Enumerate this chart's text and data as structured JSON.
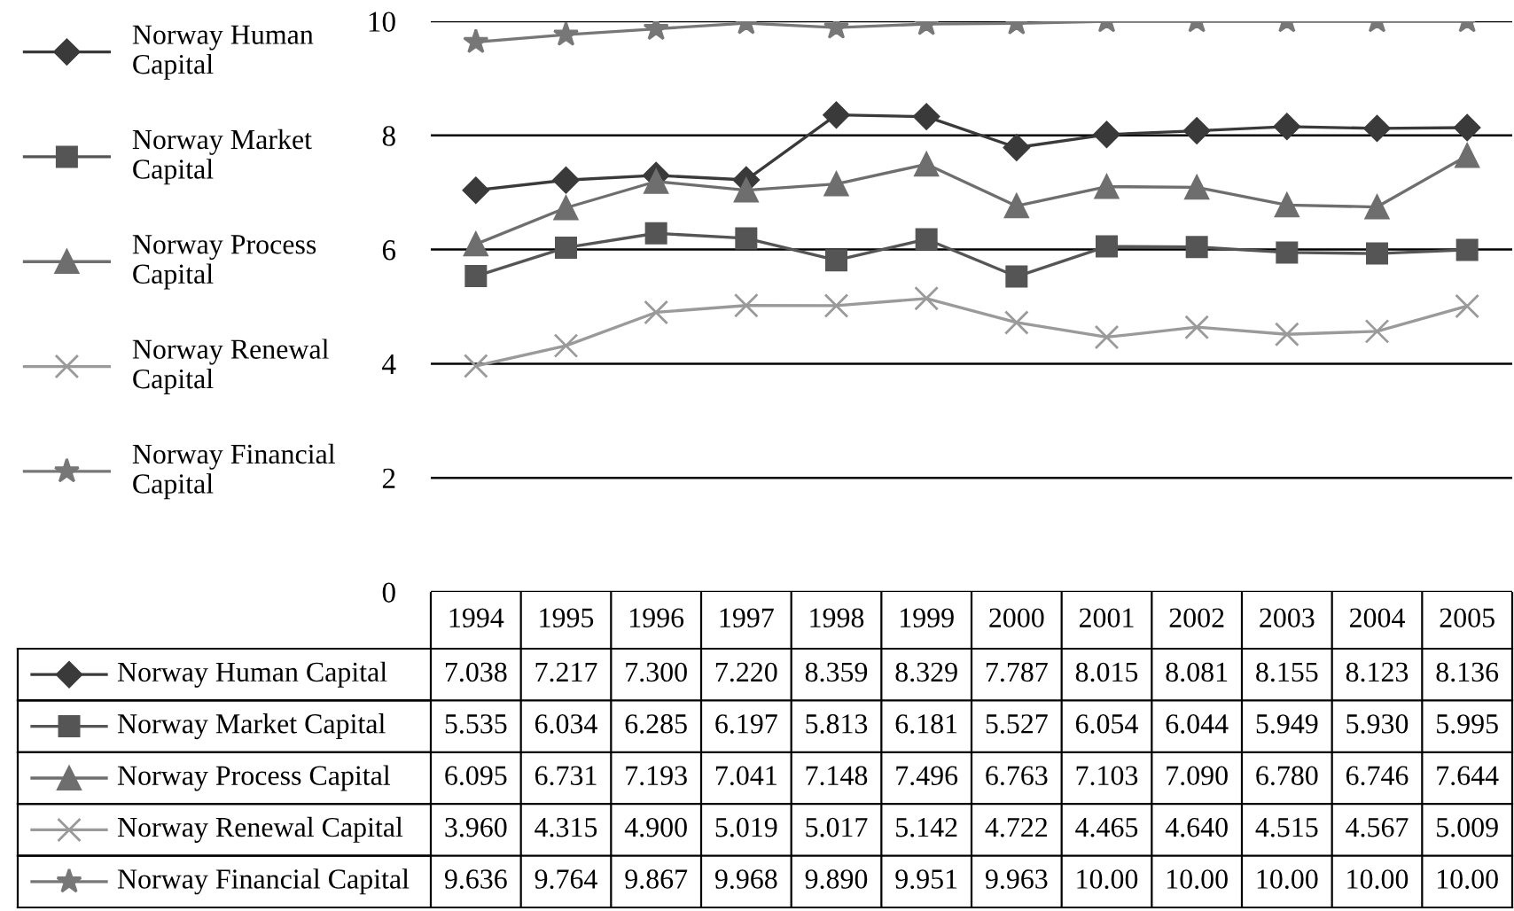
{
  "chart_data": {
    "type": "line",
    "categories": [
      "1994",
      "1995",
      "1996",
      "1997",
      "1998",
      "1999",
      "2000",
      "2001",
      "2002",
      "2003",
      "2004",
      "2005"
    ],
    "ylim": [
      0,
      10
    ],
    "yticks": [
      0,
      2,
      4,
      6,
      8,
      10
    ],
    "grid": "y",
    "legend": "left",
    "tick_labels": "y",
    "line_style": "solid",
    "series": [
      {
        "name": "Norway Human Capital",
        "color": "#3a3a3a",
        "marker": "diamond",
        "values": [
          7.038,
          7.217,
          7.3,
          7.22,
          8.359,
          8.329,
          7.787,
          8.015,
          8.081,
          8.155,
          8.123,
          8.136
        ],
        "value_labels": [
          "7.038",
          "7.217",
          "7.300",
          "7.220",
          "8.359",
          "8.329",
          "7.787",
          "8.015",
          "8.081",
          "8.155",
          "8.123",
          "8.136"
        ]
      },
      {
        "name": "Norway Market Capital",
        "color": "#555555",
        "marker": "square",
        "values": [
          5.535,
          6.034,
          6.285,
          6.197,
          5.813,
          6.181,
          5.527,
          6.054,
          6.044,
          5.949,
          5.93,
          5.995
        ],
        "value_labels": [
          "5.535",
          "6.034",
          "6.285",
          "6.197",
          "5.813",
          "6.181",
          "5.527",
          "6.054",
          "6.044",
          "5.949",
          "5.930",
          "5.995"
        ]
      },
      {
        "name": "Norway Process Capital",
        "color": "#6e6e6e",
        "marker": "triangle",
        "values": [
          6.095,
          6.731,
          7.193,
          7.041,
          7.148,
          7.496,
          6.763,
          7.103,
          7.09,
          6.78,
          6.746,
          7.644
        ],
        "value_labels": [
          "6.095",
          "6.731",
          "7.193",
          "7.041",
          "7.148",
          "7.496",
          "6.763",
          "7.103",
          "7.090",
          "6.780",
          "6.746",
          "7.644"
        ]
      },
      {
        "name": "Norway Renewal Capital",
        "color": "#9a9a9a",
        "marker": "cross",
        "values": [
          3.96,
          4.315,
          4.9,
          5.019,
          5.017,
          5.142,
          4.722,
          4.465,
          4.64,
          4.515,
          4.567,
          5.009
        ],
        "value_labels": [
          "3.960",
          "4.315",
          "4.900",
          "5.019",
          "5.017",
          "5.142",
          "4.722",
          "4.465",
          "4.640",
          "4.515",
          "4.567",
          "5.009"
        ]
      },
      {
        "name": "Norway Financial Capital",
        "color": "#777777",
        "marker": "star",
        "values": [
          9.636,
          9.764,
          9.867,
          9.968,
          9.89,
          9.951,
          9.963,
          10.0,
          10.0,
          10.0,
          10.0,
          10.0
        ],
        "value_labels": [
          "9.636",
          "9.764",
          "9.867",
          "9.968",
          "9.890",
          "9.951",
          "9.963",
          "10.00",
          "10.00",
          "10.00",
          "10.00",
          "10.00"
        ]
      }
    ]
  }
}
